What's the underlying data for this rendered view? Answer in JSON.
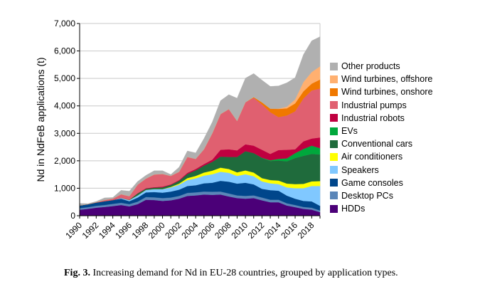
{
  "chart_data": {
    "type": "area",
    "stacked": true,
    "title": "",
    "xlabel": "",
    "ylabel": "Nd in NdFeB applications (t)",
    "ylim": [
      0,
      7000
    ],
    "yticks": [
      "0",
      "1,000",
      "2,000",
      "3,000",
      "4,000",
      "5,000",
      "6,000",
      "7,000"
    ],
    "xlim": [
      1990,
      2019
    ],
    "xtick_labels": [
      "1990",
      "1992",
      "1994",
      "1996",
      "1998",
      "2000",
      "2002",
      "2004",
      "2006",
      "2008",
      "2010",
      "2012",
      "2014",
      "2016",
      "2018"
    ],
    "grid": "horizontal",
    "legend_position": "right",
    "x": [
      1990,
      1991,
      1992,
      1993,
      1994,
      1995,
      1996,
      1997,
      1998,
      1999,
      2000,
      2001,
      2002,
      2003,
      2004,
      2005,
      2006,
      2007,
      2008,
      2009,
      2010,
      2011,
      2012,
      2013,
      2014,
      2015,
      2016,
      2017,
      2018,
      2019
    ],
    "series": [
      {
        "name": "HDDs",
        "color": "#4b0078",
        "values": [
          216,
          250,
          290,
          320,
          350,
          390,
          340,
          420,
          580,
          570,
          540,
          560,
          620,
          720,
          740,
          770,
          760,
          770,
          700,
          640,
          620,
          640,
          560,
          490,
          490,
          370,
          310,
          250,
          220,
          130
        ]
      },
      {
        "name": "Desktop PCs",
        "color": "#5b86b8",
        "values": [
          60,
          60,
          70,
          70,
          80,
          80,
          80,
          90,
          100,
          100,
          100,
          100,
          100,
          110,
          110,
          110,
          110,
          110,
          110,
          100,
          100,
          100,
          100,
          90,
          90,
          80,
          80,
          70,
          70,
          60
        ]
      },
      {
        "name": "Game consoles",
        "color": "#00468b",
        "values": [
          100,
          110,
          120,
          140,
          140,
          150,
          110,
          150,
          170,
          190,
          200,
          220,
          230,
          250,
          260,
          300,
          330,
          390,
          430,
          430,
          480,
          400,
          320,
          350,
          330,
          280,
          230,
          220,
          230,
          170
        ]
      },
      {
        "name": "Speakers",
        "color": "#80c8ff",
        "values": [
          0,
          0,
          0,
          0,
          0,
          30,
          40,
          80,
          90,
          110,
          130,
          150,
          180,
          220,
          250,
          280,
          310,
          330,
          320,
          280,
          310,
          300,
          270,
          250,
          240,
          300,
          380,
          460,
          560,
          720
        ]
      },
      {
        "name": "Air conditioners",
        "color": "#ffff00",
        "values": [
          0,
          0,
          0,
          0,
          0,
          0,
          0,
          0,
          0,
          0,
          0,
          20,
          40,
          70,
          90,
          110,
          130,
          150,
          140,
          130,
          140,
          130,
          120,
          120,
          130,
          140,
          150,
          160,
          170,
          180
        ]
      },
      {
        "name": "Conventional cars",
        "color": "#1f6b3c",
        "values": [
          0,
          0,
          0,
          0,
          0,
          0,
          10,
          70,
          40,
          50,
          60,
          70,
          100,
          150,
          200,
          250,
          320,
          400,
          440,
          560,
          700,
          710,
          730,
          690,
          730,
          810,
          950,
          1020,
          1000,
          970
        ]
      },
      {
        "name": "EVs",
        "color": "#00a83c",
        "values": [
          0,
          0,
          0,
          0,
          0,
          0,
          0,
          0,
          0,
          0,
          0,
          0,
          0,
          0,
          0,
          0,
          0,
          0,
          0,
          0,
          0,
          0,
          10,
          30,
          60,
          110,
          180,
          250,
          300,
          230
        ]
      },
      {
        "name": "Industrial robots",
        "color": "#c00040",
        "values": [
          0,
          0,
          0,
          0,
          0,
          0,
          0,
          10,
          20,
          20,
          30,
          20,
          30,
          40,
          50,
          60,
          80,
          250,
          280,
          240,
          250,
          270,
          290,
          230,
          320,
          310,
          140,
          280,
          260,
          390
        ]
      },
      {
        "name": "Industrial pumps",
        "color": "#e06070",
        "values": [
          0,
          0,
          10,
          40,
          50,
          130,
          130,
          310,
          350,
          460,
          460,
          310,
          300,
          580,
          370,
          540,
          960,
          1300,
          1460,
          1070,
          1530,
          1740,
          1650,
          1520,
          1200,
          1250,
          1380,
          1560,
          1750,
          1780
        ]
      },
      {
        "name": "Wind turbines, onshore",
        "color": "#f07800",
        "values": [
          0,
          0,
          0,
          0,
          0,
          0,
          0,
          0,
          0,
          0,
          0,
          0,
          0,
          0,
          0,
          0,
          0,
          0,
          0,
          0,
          0,
          30,
          80,
          130,
          300,
          260,
          290,
          260,
          250,
          330
        ]
      },
      {
        "name": "Wind turbines, offshore",
        "color": "#ffb070",
        "values": [
          0,
          0,
          0,
          0,
          0,
          0,
          0,
          0,
          0,
          0,
          0,
          0,
          0,
          0,
          0,
          0,
          0,
          0,
          0,
          0,
          0,
          0,
          0,
          0,
          10,
          60,
          140,
          340,
          420,
          480
        ]
      },
      {
        "name": "Other products",
        "color": "#b0b0b0",
        "values": [
          74,
          20,
          30,
          80,
          45,
          145,
          185,
          120,
          120,
          140,
          120,
          50,
          170,
          220,
          220,
          390,
          410,
          490,
          530,
          830,
          880,
          860,
          810,
          810,
          830,
          870,
          800,
          1000,
          1140,
          1080
        ]
      }
    ]
  },
  "caption": {
    "label": "Fig. 3.",
    "text": "Increasing demand for Nd in EU-28 countries, grouped by application types."
  }
}
